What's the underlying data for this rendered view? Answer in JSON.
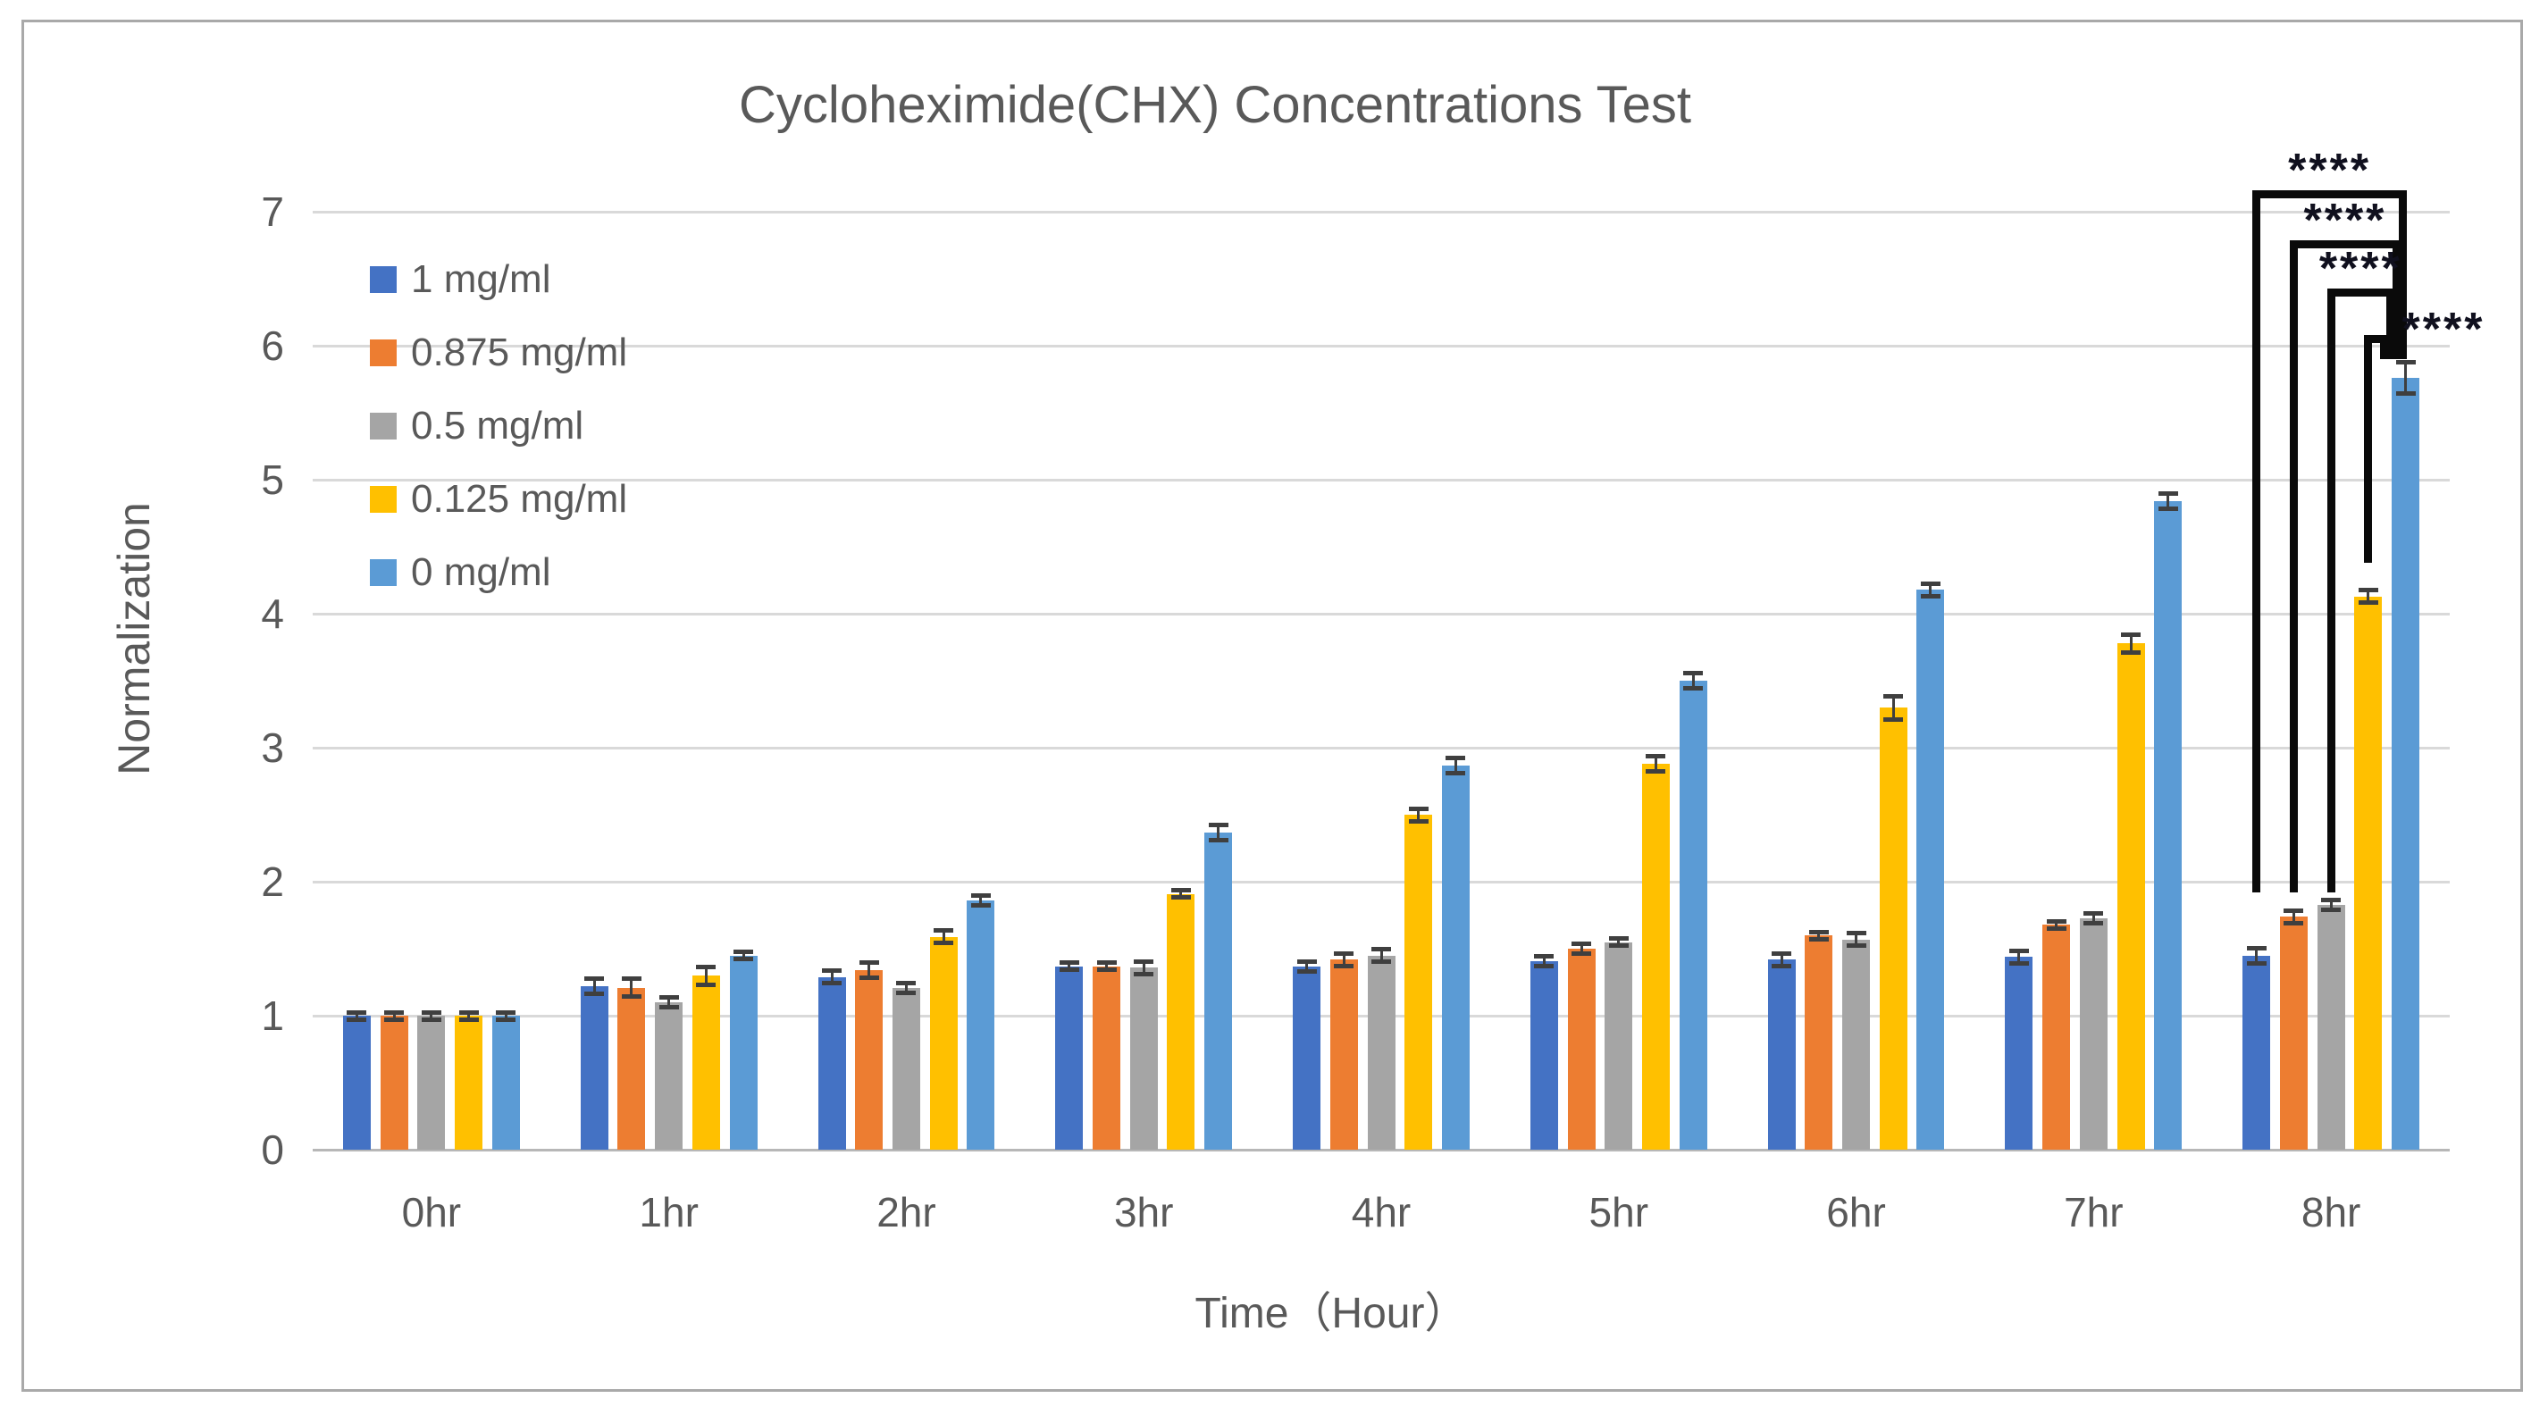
{
  "chart_data": {
    "type": "bar",
    "title": "Cycloheximide(CHX) Concentrations Test",
    "xlabel": "Time（Hour）",
    "ylabel": "Normalization",
    "categories": [
      "0hr",
      "1hr",
      "2hr",
      "3hr",
      "4hr",
      "5hr",
      "6hr",
      "7hr",
      "8hr"
    ],
    "y_ticks": [
      0,
      1,
      2,
      3,
      4,
      5,
      6,
      7
    ],
    "ylim": [
      0,
      7
    ],
    "grid": true,
    "legend_position": "inside-top-left",
    "series": [
      {
        "name": "1 mg/ml",
        "color": "#4472C4",
        "values": [
          1.0,
          1.22,
          1.29,
          1.37,
          1.37,
          1.41,
          1.42,
          1.44,
          1.45
        ],
        "errors": [
          0.03,
          0.06,
          0.05,
          0.03,
          0.04,
          0.04,
          0.05,
          0.05,
          0.06
        ]
      },
      {
        "name": "0.875 mg/ml",
        "color": "#ED7D31",
        "values": [
          1.0,
          1.21,
          1.34,
          1.37,
          1.42,
          1.5,
          1.6,
          1.68,
          1.74
        ],
        "errors": [
          0.03,
          0.07,
          0.06,
          0.03,
          0.05,
          0.04,
          0.03,
          0.03,
          0.05
        ]
      },
      {
        "name": "0.5 mg/ml",
        "color": "#A5A5A5",
        "values": [
          1.0,
          1.1,
          1.21,
          1.36,
          1.45,
          1.55,
          1.57,
          1.73,
          1.83
        ],
        "errors": [
          0.03,
          0.04,
          0.04,
          0.05,
          0.05,
          0.03,
          0.05,
          0.04,
          0.04
        ]
      },
      {
        "name": "0.125 mg/ml",
        "color": "#FFC000",
        "values": [
          1.0,
          1.3,
          1.59,
          1.91,
          2.5,
          2.88,
          3.3,
          3.78,
          4.13
        ],
        "errors": [
          0.03,
          0.07,
          0.05,
          0.03,
          0.05,
          0.06,
          0.09,
          0.07,
          0.05
        ]
      },
      {
        "name": "0 mg/ml",
        "color": "#5B9BD5",
        "values": [
          1.0,
          1.45,
          1.86,
          2.37,
          2.87,
          3.5,
          4.18,
          4.84,
          5.76
        ],
        "errors": [
          0.03,
          0.03,
          0.04,
          0.06,
          0.06,
          0.06,
          0.05,
          0.06,
          0.12
        ]
      }
    ],
    "annotations": {
      "brackets": [
        {
          "label": "****",
          "group": "8hr",
          "from_series": 0,
          "to_series": 4,
          "top_value": 7.16,
          "from_drop_value": 1.92,
          "to_drop_value": 5.9,
          "label_placement": "above"
        },
        {
          "label": "****",
          "group": "8hr",
          "from_series": 1,
          "to_series": 4,
          "top_value": 6.79,
          "from_drop_value": 1.92,
          "to_drop_value": 5.9,
          "label_placement": "above"
        },
        {
          "label": "****",
          "group": "8hr",
          "from_series": 2,
          "to_series": 4,
          "top_value": 6.43,
          "from_drop_value": 1.92,
          "to_drop_value": 5.9,
          "label_placement": "above"
        },
        {
          "label": "****",
          "group": "8hr",
          "from_series": 3,
          "to_series": 4,
          "top_value": 6.08,
          "from_drop_value": 4.38,
          "to_drop_value": 5.9,
          "label_placement": "right"
        }
      ]
    },
    "colors": {
      "text": "#595959",
      "gridline": "#d9d9d9",
      "axis_line": "#b7b7b7",
      "error_bar": "#3f3f3f",
      "bracket": "#0a0a0a",
      "frame_border": "#a9a9a9"
    }
  }
}
